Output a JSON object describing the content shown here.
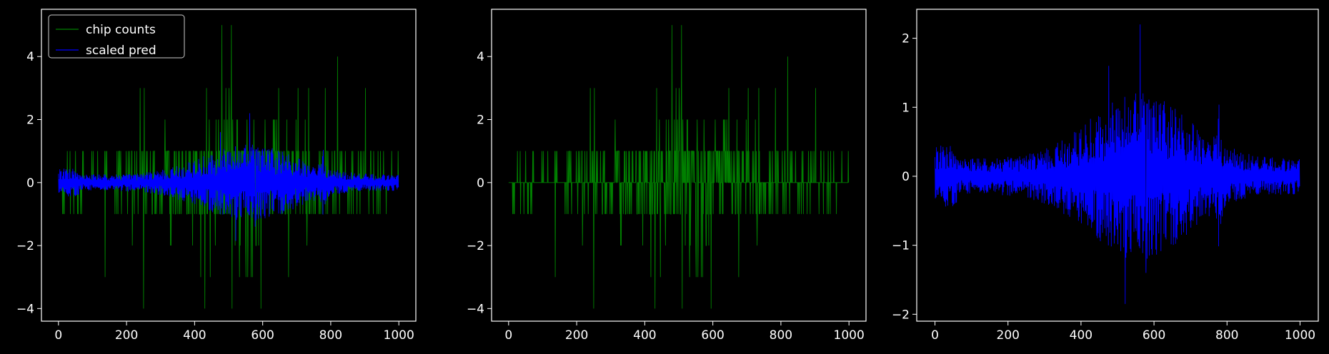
{
  "background": "#000000",
  "foreground": "#ffffff",
  "chart_data": [
    {
      "type": "line",
      "title": "",
      "xlabel": "",
      "ylabel": "",
      "xlim": [
        -50,
        1050
      ],
      "ylim": [
        -4.4,
        5.5
      ],
      "xticks": [
        0,
        200,
        400,
        600,
        800,
        1000
      ],
      "xtick_labels": [
        "0",
        "200",
        "400",
        "600",
        "800",
        "1000"
      ],
      "yticks": [
        -4,
        -2,
        0,
        2,
        4
      ],
      "ytick_labels": [
        "−4",
        "−2",
        "0",
        "2",
        "4"
      ],
      "grid": false,
      "legend": {
        "placement": "upper-left",
        "entries": [
          {
            "label": "chip counts",
            "color": "#008000"
          },
          {
            "label": "scaled pred",
            "color": "#0000ff"
          }
        ]
      },
      "series": [
        {
          "name": "chip counts",
          "color": "#008000",
          "kind": "count-spikes",
          "n_points": 1000,
          "baseline": 0,
          "value_range": [
            -4,
            5
          ],
          "notable_peaks": [
            [
              480,
              5
            ],
            [
              508,
              5
            ],
            [
              820,
              4
            ],
            [
              250,
              -4
            ],
            [
              430,
              -4
            ],
            [
              510,
              -4
            ],
            [
              595,
              -4
            ]
          ]
        },
        {
          "name": "scaled pred",
          "color": "#0000ff",
          "kind": "symmetric-envelope",
          "n_points": 1000,
          "value_range": [
            -1.9,
            2.2
          ],
          "envelope_peak_x": 560
        }
      ]
    },
    {
      "type": "line",
      "title": "",
      "xlabel": "",
      "ylabel": "",
      "xlim": [
        -50,
        1050
      ],
      "ylim": [
        -4.4,
        5.5
      ],
      "xticks": [
        0,
        200,
        400,
        600,
        800,
        1000
      ],
      "xtick_labels": [
        "0",
        "200",
        "400",
        "600",
        "800",
        "1000"
      ],
      "yticks": [
        -4,
        -2,
        0,
        2,
        4
      ],
      "ytick_labels": [
        "−4",
        "−2",
        "0",
        "2",
        "4"
      ],
      "grid": false,
      "series": [
        {
          "color": "#008000",
          "kind": "count-spikes",
          "n_points": 1000,
          "baseline": 0,
          "value_range": [
            -4,
            5
          ],
          "notable_peaks": [
            [
              480,
              5
            ],
            [
              508,
              5
            ],
            [
              820,
              4
            ],
            [
              250,
              -4
            ],
            [
              430,
              -4
            ],
            [
              510,
              -4
            ],
            [
              595,
              -4
            ]
          ]
        }
      ]
    },
    {
      "type": "line",
      "title": "",
      "xlabel": "",
      "ylabel": "",
      "xlim": [
        -50,
        1050
      ],
      "ylim": [
        -2.1,
        2.42
      ],
      "xticks": [
        0,
        200,
        400,
        600,
        800,
        1000
      ],
      "xtick_labels": [
        "0",
        "200",
        "400",
        "600",
        "800",
        "1000"
      ],
      "yticks": [
        -2,
        -1,
        0,
        1,
        2
      ],
      "ytick_labels": [
        "−2",
        "−1",
        "0",
        "1",
        "2"
      ],
      "grid": false,
      "series": [
        {
          "color": "#0000ff",
          "kind": "symmetric-envelope",
          "n_points": 1000,
          "value_range": [
            -1.9,
            2.2
          ],
          "envelope_peak_x": 560
        }
      ]
    }
  ]
}
